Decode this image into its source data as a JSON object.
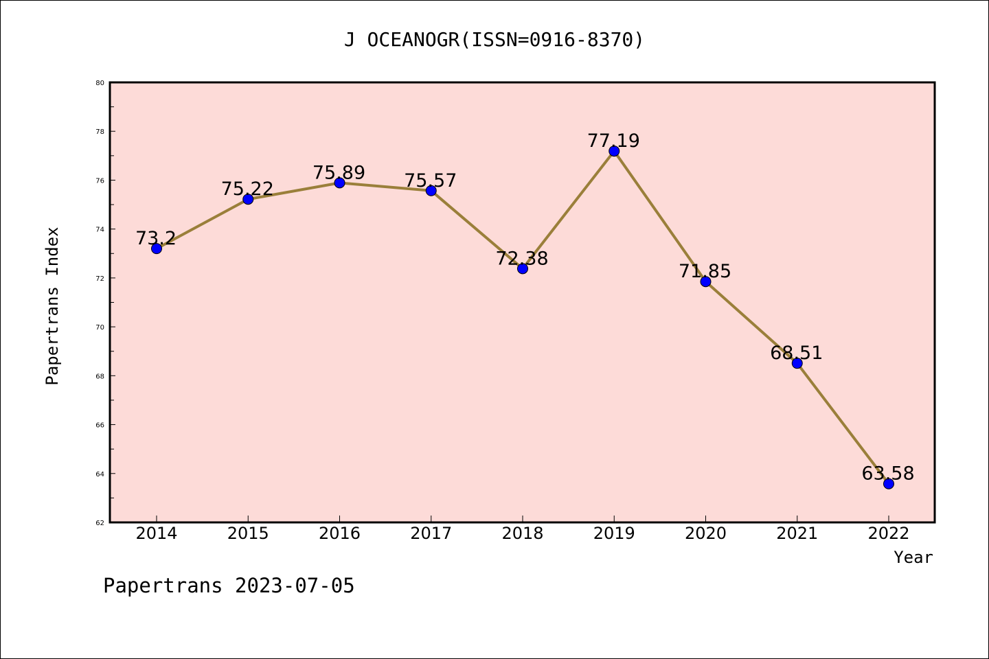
{
  "chart_data": {
    "type": "line",
    "title": "J OCEANOGR(ISSN=0916-8370)",
    "xlabel": "Year",
    "ylabel": "Papertrans Index",
    "footer": "Papertrans 2023-07-05",
    "categories": [
      "2014",
      "2015",
      "2016",
      "2017",
      "2018",
      "2019",
      "2020",
      "2021",
      "2022"
    ],
    "values": [
      73.2,
      75.22,
      75.89,
      75.57,
      72.38,
      77.19,
      71.85,
      68.51,
      63.58
    ],
    "data_labels": [
      "73.2",
      "75.22",
      "75.89",
      "75.57",
      "72.38",
      "77.19",
      "71.85",
      "68.51",
      "63.58"
    ],
    "ylim": [
      62,
      80
    ],
    "yticks": [
      "62",
      "64",
      "66",
      "68",
      "70",
      "72",
      "74",
      "76",
      "78",
      "80"
    ],
    "grid": false,
    "colors": {
      "plot_background": "#fddbd8",
      "line": "#9a7f3a",
      "marker": "#0000ff"
    }
  }
}
